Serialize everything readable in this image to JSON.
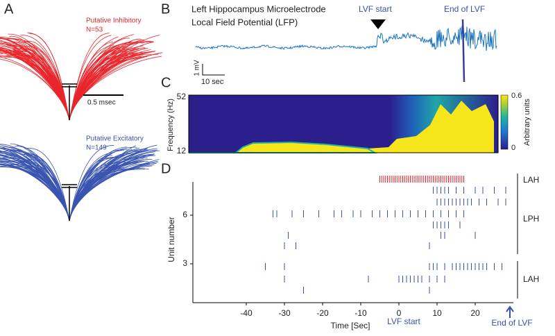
{
  "panels": {
    "A": {
      "label": "A",
      "inhibitory": {
        "title": "Putative Inhibitory",
        "count": "N=53"
      },
      "scale": "0.5 msec",
      "excitatory": {
        "title": "Putative Excitatory",
        "count": "N=149"
      }
    },
    "B": {
      "label": "B",
      "title_line1": "Left Hippocampus Microelectrode",
      "title_line2": "Local Field Potential (LFP)",
      "start_label": "LVF start",
      "end_label": "End of LVF",
      "scale_v": "1 mV",
      "scale_t": "10 sec"
    },
    "C": {
      "label": "C",
      "ylabel": "Frequency (Hz)",
      "yticks": [
        52,
        12
      ],
      "colorbar_label": "Arbitrary units",
      "colorbar_ticks": [
        0.6,
        0
      ]
    }
  },
  "chart_data": {
    "type": "raster",
    "label": "D",
    "xlabel": "Time [Sec]",
    "ylabel": "Unit number",
    "xlim": [
      -54,
      30
    ],
    "xticks": [
      -40,
      -30,
      -20,
      -10,
      0,
      10,
      20
    ],
    "yticks": [
      6,
      3
    ],
    "start_label": "LVF start",
    "end_label": "End of LVF",
    "series": [
      {
        "name": "LAH",
        "color": "#e0262b",
        "rows": [
          [
            -5,
            -4.5,
            -4,
            -3.5,
            -3,
            -2.5,
            -2,
            -1.5,
            -1,
            -0.5,
            0,
            0.5,
            1,
            1.5,
            2,
            2.5,
            3,
            3.5,
            4,
            4.5,
            5,
            5.5,
            6,
            6.5,
            7,
            7.5,
            8,
            8.5,
            9,
            9.5,
            10,
            10.5,
            11,
            11.5,
            12,
            12.5,
            13,
            13.5,
            14,
            14.5,
            15,
            15.5,
            16,
            16.5,
            17
          ]
        ]
      },
      {
        "name": "LPH",
        "color": "#3a4fa8",
        "rows": [
          [
            9,
            10,
            11,
            12,
            13,
            15,
            17,
            20,
            22,
            25,
            28
          ],
          [
            10,
            11,
            12,
            13,
            14,
            15,
            16,
            17,
            18,
            19,
            21,
            23,
            26,
            28
          ],
          [
            -33,
            -32,
            -28,
            -25,
            -21,
            -17,
            -15,
            -12,
            -10,
            -7,
            -5,
            -3,
            -1,
            1,
            3,
            5,
            7,
            9,
            11,
            13,
            15,
            17
          ],
          [
            9,
            10,
            11,
            12,
            13,
            16
          ],
          [
            -29,
            11,
            12,
            20
          ],
          [
            -30,
            -27,
            8
          ]
        ]
      },
      {
        "name": "LAH",
        "color": "#3a4fa8",
        "rows": [
          [
            -35,
            -30,
            8,
            9,
            10,
            12,
            14,
            15,
            16,
            17,
            18,
            19,
            20,
            21,
            22,
            23,
            25,
            27
          ],
          [
            -30,
            -8,
            0,
            1,
            2,
            3,
            4,
            5,
            6,
            8,
            10,
            12
          ],
          [
            -25,
            8
          ]
        ]
      }
    ]
  }
}
